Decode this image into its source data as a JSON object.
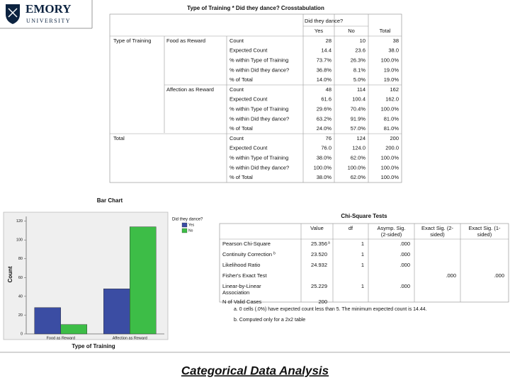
{
  "header": {
    "logo": "EMORY",
    "logo_sub": "UNIVERSITY"
  },
  "crosstab": {
    "title": "Type of Training * Did they dance? Crosstabulation",
    "column_group": "Did they dance?",
    "columns": [
      "Yes",
      "No",
      "Total"
    ],
    "row_header": "Type of Training",
    "groups": [
      {
        "label": "Food as Reward",
        "rows": [
          [
            "Count",
            "28",
            "10",
            "38"
          ],
          [
            "Expected Count",
            "14.4",
            "23.6",
            "38.0"
          ],
          [
            "% within Type of Training",
            "73.7%",
            "26.3%",
            "100.0%"
          ],
          [
            "% within Did they dance?",
            "36.8%",
            "8.1%",
            "19.0%"
          ],
          [
            "% of Total",
            "14.0%",
            "5.0%",
            "19.0%"
          ]
        ]
      },
      {
        "label": "Affection as Reward",
        "rows": [
          [
            "Count",
            "48",
            "114",
            "162"
          ],
          [
            "Expected Count",
            "61.6",
            "100.4",
            "162.0"
          ],
          [
            "% within Type of Training",
            "29.6%",
            "70.4%",
            "100.0%"
          ],
          [
            "% within Did they dance?",
            "63.2%",
            "91.9%",
            "81.0%"
          ],
          [
            "% of Total",
            "24.0%",
            "57.0%",
            "81.0%"
          ]
        ]
      }
    ],
    "total": {
      "label": "Total",
      "rows": [
        [
          "Count",
          "76",
          "124",
          "200"
        ],
        [
          "Expected Count",
          "76.0",
          "124.0",
          "200.0"
        ],
        [
          "% within Type of Training",
          "38.0%",
          "62.0%",
          "100.0%"
        ],
        [
          "% within Did they dance?",
          "100.0%",
          "100.0%",
          "100.0%"
        ],
        [
          "% of Total",
          "38.0%",
          "62.0%",
          "100.0%"
        ]
      ]
    }
  },
  "chart_data": {
    "type": "bar",
    "title": "Bar Chart",
    "x_label": "Type of Training",
    "y_label": "Count",
    "categories": [
      "Food as Reward",
      "Affection as Reward"
    ],
    "series": [
      {
        "name": "Yes",
        "color": "#3b4da3",
        "values": [
          28,
          48
        ]
      },
      {
        "name": "No",
        "color": "#3dbd47",
        "values": [
          10,
          114
        ]
      }
    ],
    "ylim": [
      0,
      125
    ],
    "yticks": [
      0,
      20,
      40,
      60,
      80,
      100,
      120
    ],
    "legend_title": "Did they dance?",
    "legend": "right"
  },
  "chisq": {
    "title": "Chi-Square Tests",
    "columns": [
      [
        "Value"
      ],
      [
        "df"
      ],
      [
        "Asymp. Sig.",
        "(2-sided)"
      ],
      [
        "Exact Sig. (2-",
        "sided)"
      ],
      [
        "Exact Sig. (1-",
        "sided)"
      ]
    ],
    "rows": [
      {
        "label": [
          "Pearson Chi-Square"
        ],
        "cells": [
          "25.356",
          "1",
          ".000",
          null,
          null
        ],
        "value_note": "a"
      },
      {
        "label": [
          "Continuity Correction"
        ],
        "label_note": "b",
        "cells": [
          "23.520",
          "1",
          ".000",
          null,
          null
        ]
      },
      {
        "label": [
          "Likelihood Ratio"
        ],
        "cells": [
          "24.932",
          "1",
          ".000",
          null,
          null
        ]
      },
      {
        "label": [
          "Fisher's Exact Test"
        ],
        "cells": [
          null,
          null,
          null,
          ".000",
          ".000"
        ]
      },
      {
        "label": [
          "Linear-by-Linear",
          "Association"
        ],
        "cells": [
          "25.229",
          "1",
          ".000",
          null,
          null
        ]
      },
      {
        "label": [
          "N of Valid Cases"
        ],
        "cells": [
          "200",
          null,
          null,
          null,
          null
        ]
      }
    ],
    "footnotes": [
      "a. 0 cells (.0%) have expected count less than 5. The minimum expected count is 14.44.",
      "b. Computed only for a 2x2 table"
    ]
  },
  "footer": "Categorical Data Analysis"
}
